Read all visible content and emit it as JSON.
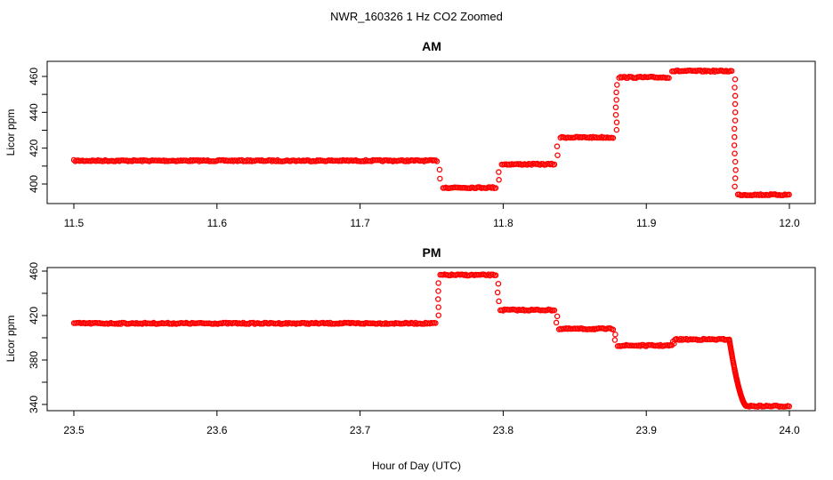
{
  "figure": {
    "title": "NWR_160326  1 Hz CO2 Zoomed",
    "xlabel": "Hour of Day (UTC)"
  },
  "colors": {
    "points": "#ff0000",
    "axes": "#000000"
  },
  "chart_data": [
    {
      "type": "scatter",
      "title": "AM",
      "xlabel": "",
      "ylabel": "Licor ppm",
      "xlim": [
        11.5,
        12.0
      ],
      "ylim": [
        390,
        467
      ],
      "xticks": [
        11.5,
        11.6,
        11.7,
        11.8,
        11.9,
        12.0
      ],
      "xtick_labels": [
        "11.5",
        "11.6",
        "11.7",
        "11.8",
        "11.9",
        "12.0"
      ],
      "yticks": [
        400,
        420,
        440,
        460
      ],
      "ytick_labels": [
        "400",
        "420",
        "440",
        "460"
      ],
      "grid": false,
      "marker": "open-circle",
      "segments": [
        {
          "x": [
            11.5,
            11.754
          ],
          "y": 413.0
        },
        {
          "x": [
            11.758,
            11.795
          ],
          "y": 398.0
        },
        {
          "x": [
            11.799,
            11.836
          ],
          "y": 411.0
        },
        {
          "x": [
            11.84,
            11.877
          ],
          "y": 426.0
        },
        {
          "x": [
            11.881,
            11.916
          ],
          "y": 459.5
        },
        {
          "x": [
            11.918,
            11.96
          ],
          "y": 463.0
        },
        {
          "x": [
            11.964,
            12.0
          ],
          "y": 394.0
        }
      ],
      "transitions": [
        {
          "x": 11.7555,
          "y": [
            413.0,
            398.0
          ]
        },
        {
          "x": 11.797,
          "y": [
            398.0,
            411.0
          ]
        },
        {
          "x": 11.838,
          "y": [
            411.0,
            426.0
          ]
        },
        {
          "x": 11.879,
          "y": [
            426.0,
            459.5
          ]
        },
        {
          "x": 11.962,
          "y": [
            463.0,
            394.0
          ]
        }
      ]
    },
    {
      "type": "scatter",
      "title": "PM",
      "xlabel": "",
      "ylabel": "Licor ppm",
      "xlim": [
        23.5,
        24.0
      ],
      "ylim": [
        335,
        465
      ],
      "xticks": [
        23.5,
        23.6,
        23.7,
        23.8,
        23.9,
        24.0
      ],
      "xtick_labels": [
        "23.5",
        "23.6",
        "23.7",
        "23.8",
        "23.9",
        "24.0"
      ],
      "yticks": [
        340,
        380,
        420,
        460
      ],
      "ytick_labels": [
        "340",
        "380",
        "420",
        "460"
      ],
      "grid": false,
      "marker": "open-circle",
      "segments": [
        {
          "x": [
            23.5,
            23.753
          ],
          "y": 413.0
        },
        {
          "x": [
            23.756,
            23.795
          ],
          "y": 456.5
        },
        {
          "x": [
            23.798,
            23.836
          ],
          "y": 425.0
        },
        {
          "x": [
            23.839,
            23.877
          ],
          "y": 408.0
        },
        {
          "x": [
            23.88,
            23.918
          ],
          "y": 393.0
        },
        {
          "x": [
            23.92,
            23.958
          ],
          "y": 398.5
        },
        {
          "x": [
            23.97,
            24.0
          ],
          "y": 338.5
        }
      ],
      "transitions": [
        {
          "x": 23.7545,
          "y": [
            413.0,
            456.5
          ]
        },
        {
          "x": 23.7965,
          "y": [
            456.5,
            425.0
          ]
        },
        {
          "x": 23.8375,
          "y": [
            425.0,
            408.0
          ]
        },
        {
          "x": 23.8785,
          "y": [
            408.0,
            393.0
          ]
        },
        {
          "x": 23.919,
          "y": [
            393.0,
            398.5
          ]
        }
      ],
      "decay": {
        "x": [
          23.958,
          23.97
        ],
        "y": [
          398.5,
          338.5
        ]
      }
    }
  ]
}
